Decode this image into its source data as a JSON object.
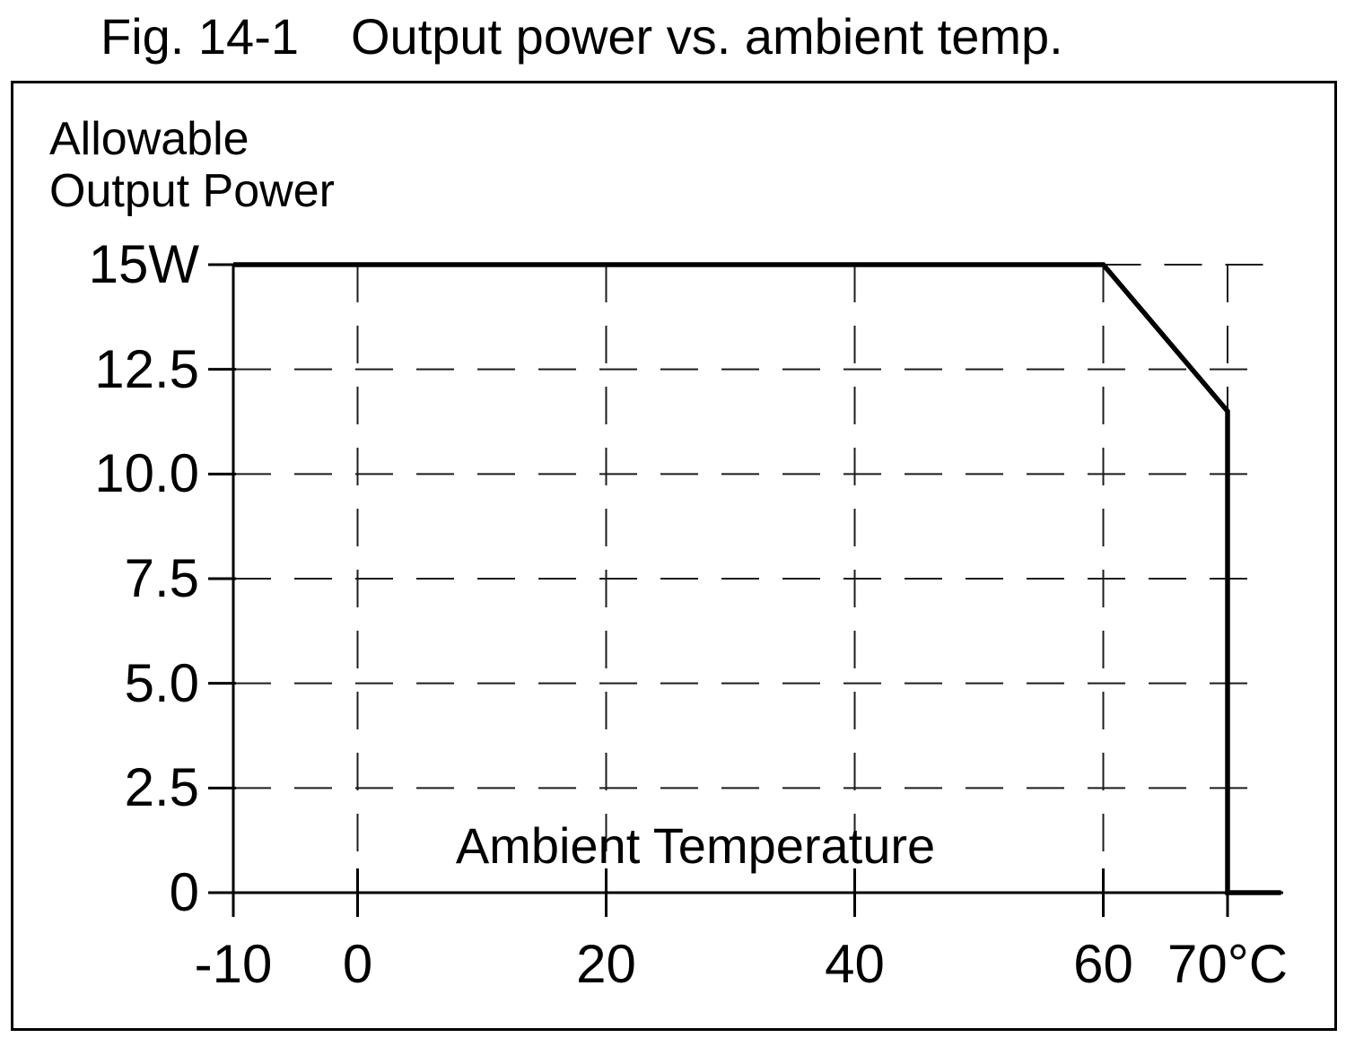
{
  "header": {
    "figure_label": "Fig. 14-1",
    "title": "Output power vs. ambient temp."
  },
  "chart_data": {
    "type": "line",
    "title": "Fig. 14-1 Output power vs. ambient temp.",
    "xlabel": "Ambient Temperature",
    "ylabel": "Allowable Output Power",
    "ylabel_lines": [
      "Allowable",
      "Output Power"
    ],
    "x_unit": "°C",
    "y_unit": "W",
    "xlim": [
      -10,
      70
    ],
    "ylim": [
      0,
      15
    ],
    "x_ticks": [
      {
        "value": -10,
        "label": "-10"
      },
      {
        "value": 0,
        "label": "0"
      },
      {
        "value": 20,
        "label": "20"
      },
      {
        "value": 40,
        "label": "40"
      },
      {
        "value": 60,
        "label": "60"
      },
      {
        "value": 70,
        "label": "70°C"
      }
    ],
    "y_ticks": [
      {
        "value": 15,
        "label": "15W"
      },
      {
        "value": 12.5,
        "label": "12.5"
      },
      {
        "value": 10,
        "label": "10.0"
      },
      {
        "value": 7.5,
        "label": "7.5"
      },
      {
        "value": 5,
        "label": "5.0"
      },
      {
        "value": 2.5,
        "label": "2.5"
      },
      {
        "value": 0,
        "label": "0"
      }
    ],
    "grid": {
      "style": "dashed",
      "horizontal": [
        12.5,
        10,
        7.5,
        5,
        2.5
      ],
      "horizontal_partial": {
        "value": 15,
        "from_x": 60
      },
      "vertical": [
        0,
        20,
        40,
        60,
        70
      ]
    },
    "series": [
      {
        "name": "Allowable output power vs ambient temperature",
        "points": [
          [
            -10,
            15
          ],
          [
            60,
            15
          ],
          [
            70,
            11.5
          ],
          [
            70,
            0
          ],
          [
            74.3,
            0
          ]
        ]
      }
    ],
    "legend": null
  }
}
